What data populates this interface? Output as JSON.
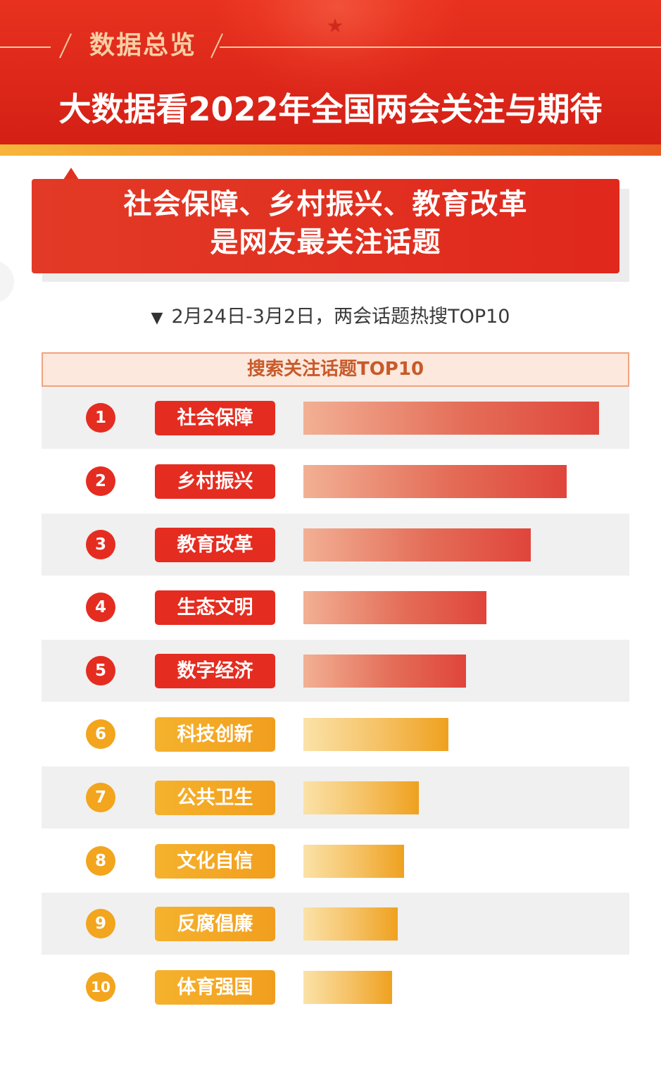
{
  "header": {
    "section_label": "数据总览",
    "title": "大数据看2022年全国两会关注与期待"
  },
  "callout": {
    "line1": "社会保障、乡村振兴、教育改革",
    "line2": "是网友最关注话题"
  },
  "subtitle": {
    "marker": "▼",
    "text": "2月24日-3月2日，两会话题热搜TOP10"
  },
  "colors": {
    "primary_red": "#e52c20",
    "accent_gold": "#f2a51d",
    "header_red": "#d41f16"
  },
  "chart_data": {
    "type": "bar",
    "title": "搜索关注话题TOP10",
    "orientation": "horizontal",
    "ranks": [
      "1",
      "2",
      "3",
      "4",
      "5",
      "6",
      "7",
      "8",
      "9",
      "10"
    ],
    "categories": [
      "社会保障",
      "乡村振兴",
      "教育改革",
      "生态文明",
      "数字经济",
      "科技创新",
      "公共卫生",
      "文化自信",
      "反腐倡廉",
      "体育强国"
    ],
    "values": [
      100,
      89,
      77,
      62,
      55,
      49,
      39,
      34,
      32,
      30
    ],
    "axis_range": [
      0,
      100
    ],
    "value_labels_shown": false,
    "grid": false,
    "color_groups": [
      "red",
      "red",
      "red",
      "red",
      "red",
      "gold",
      "gold",
      "gold",
      "gold",
      "gold"
    ]
  }
}
